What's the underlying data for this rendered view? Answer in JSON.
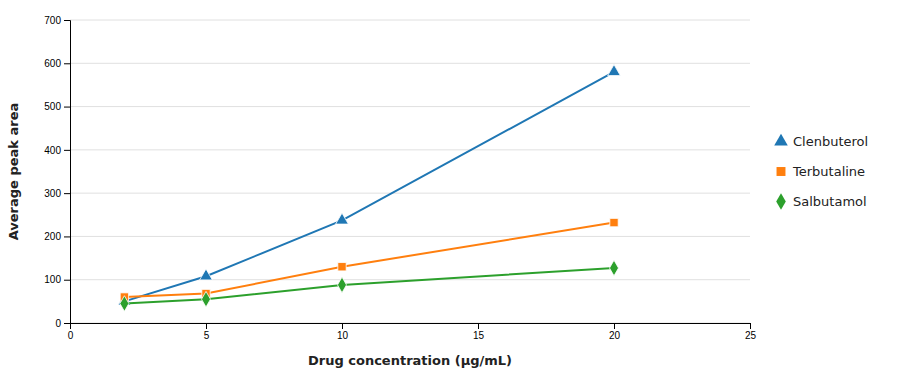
{
  "chart_data": {
    "type": "line",
    "xlabel": "Drug concentration (µg/mL)",
    "ylabel": "Average peak area",
    "x": [
      2,
      5,
      10,
      20
    ],
    "series": [
      {
        "name": "Clenbuterol",
        "marker": "triangle",
        "values": [
          50,
          108,
          237,
          580
        ]
      },
      {
        "name": "Terbutaline",
        "marker": "square",
        "values": [
          60,
          68,
          130,
          232
        ]
      },
      {
        "name": "Salbutamol",
        "marker": "diamond",
        "values": [
          45,
          55,
          88,
          127
        ]
      }
    ],
    "xlim": [
      0,
      25
    ],
    "ylim": [
      0,
      700
    ],
    "xticks": [
      0,
      5,
      10,
      15,
      20,
      25
    ],
    "yticks": [
      0,
      100,
      200,
      300,
      400,
      500,
      600,
      700
    ],
    "grid": true,
    "legend": "right"
  }
}
